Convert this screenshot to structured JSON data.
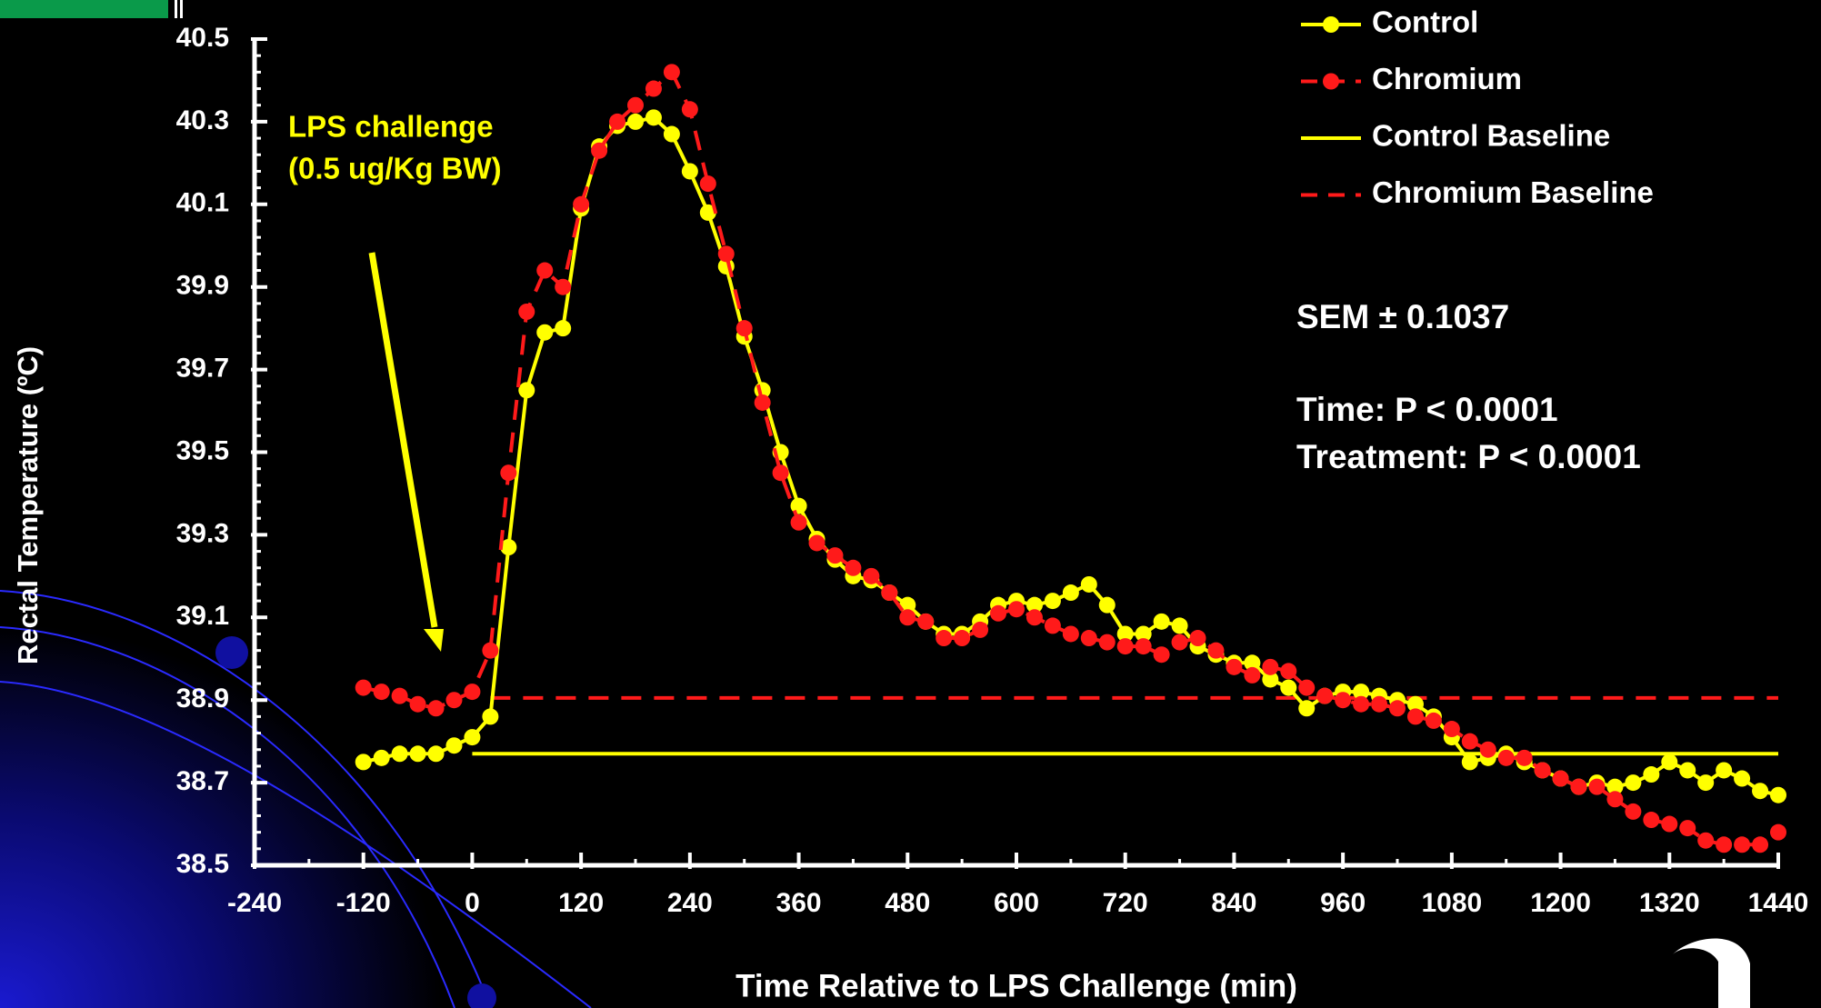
{
  "chart_data": {
    "type": "line",
    "y_label": "Rectal Temperature (ºC)",
    "x_label": "Time Relative to LPS Challenge (min)",
    "xlim": [
      -240,
      1440
    ],
    "xticks": [
      -240,
      -120,
      0,
      120,
      240,
      360,
      480,
      600,
      720,
      840,
      960,
      1080,
      1200,
      1320,
      1440
    ],
    "ylim": [
      38.5,
      40.5
    ],
    "yticks": [
      38.5,
      38.7,
      38.9,
      39.1,
      39.3,
      39.5,
      39.7,
      39.9,
      40.1,
      40.3,
      40.5
    ],
    "x": [
      -120,
      -100,
      -80,
      -60,
      -40,
      -20,
      0,
      20,
      40,
      60,
      80,
      100,
      120,
      140,
      160,
      180,
      200,
      220,
      240,
      260,
      280,
      300,
      320,
      340,
      360,
      380,
      400,
      420,
      440,
      460,
      480,
      500,
      520,
      540,
      560,
      580,
      600,
      620,
      640,
      660,
      680,
      700,
      720,
      740,
      760,
      780,
      800,
      820,
      840,
      860,
      880,
      900,
      920,
      940,
      960,
      980,
      1000,
      1020,
      1040,
      1060,
      1080,
      1100,
      1120,
      1140,
      1160,
      1180,
      1200,
      1220,
      1240,
      1260,
      1280,
      1300,
      1320,
      1340,
      1360,
      1380,
      1400,
      1420,
      1440
    ],
    "series": [
      {
        "name": "Control",
        "color": "#ffff00",
        "marker": true,
        "dashed": false,
        "values": [
          38.75,
          38.76,
          38.77,
          38.77,
          38.77,
          38.79,
          38.81,
          38.86,
          39.27,
          39.65,
          39.79,
          39.8,
          40.09,
          40.24,
          40.29,
          40.3,
          40.31,
          40.27,
          40.18,
          40.08,
          39.95,
          39.78,
          39.65,
          39.5,
          39.37,
          39.29,
          39.24,
          39.2,
          39.19,
          39.16,
          39.13,
          39.09,
          39.06,
          39.06,
          39.09,
          39.13,
          39.14,
          39.13,
          39.14,
          39.16,
          39.18,
          39.13,
          39.06,
          39.06,
          39.09,
          39.08,
          39.03,
          39.01,
          38.99,
          38.99,
          38.95,
          38.93,
          38.88,
          38.91,
          38.92,
          38.92,
          38.91,
          38.9,
          38.89,
          38.86,
          38.81,
          38.75,
          38.76,
          38.77,
          38.75,
          38.73,
          38.71,
          38.69,
          38.7,
          38.69,
          38.7,
          38.72,
          38.75,
          38.73,
          38.7,
          38.73,
          38.71,
          38.68,
          38.67
        ]
      },
      {
        "name": "Chromium",
        "color": "#ff1a1a",
        "marker": true,
        "dashed": true,
        "values": [
          38.93,
          38.92,
          38.91,
          38.89,
          38.88,
          38.9,
          38.92,
          39.02,
          39.45,
          39.84,
          39.94,
          39.9,
          40.1,
          40.23,
          40.3,
          40.34,
          40.38,
          40.42,
          40.33,
          40.15,
          39.98,
          39.8,
          39.62,
          39.45,
          39.33,
          39.28,
          39.25,
          39.22,
          39.2,
          39.16,
          39.1,
          39.09,
          39.05,
          39.05,
          39.07,
          39.11,
          39.12,
          39.1,
          39.08,
          39.06,
          39.05,
          39.04,
          39.03,
          39.03,
          39.01,
          39.04,
          39.05,
          39.02,
          38.98,
          38.96,
          38.98,
          38.97,
          38.93,
          38.91,
          38.9,
          38.89,
          38.89,
          38.88,
          38.86,
          38.85,
          38.83,
          38.8,
          38.78,
          38.76,
          38.76,
          38.73,
          38.71,
          38.69,
          38.69,
          38.66,
          38.63,
          38.61,
          38.6,
          38.59,
          38.56,
          38.55,
          38.55,
          38.55,
          38.58
        ]
      },
      {
        "name": "Control Baseline",
        "color": "#ffff00",
        "marker": false,
        "dashed": false,
        "x": [
          0,
          1440
        ],
        "values": [
          38.77,
          38.77
        ]
      },
      {
        "name": "Chromium Baseline",
        "color": "#ff1a1a",
        "marker": false,
        "dashed": true,
        "x": [
          20,
          1440
        ],
        "values": [
          38.905,
          38.905
        ]
      }
    ],
    "annotations": {
      "lps": [
        "LPS challenge",
        "(0.5 ug/Kg BW)"
      ],
      "stats": [
        "SEM ± 0.1037",
        "Time: P < 0.0001",
        "Treatment: P < 0.0001"
      ]
    }
  }
}
